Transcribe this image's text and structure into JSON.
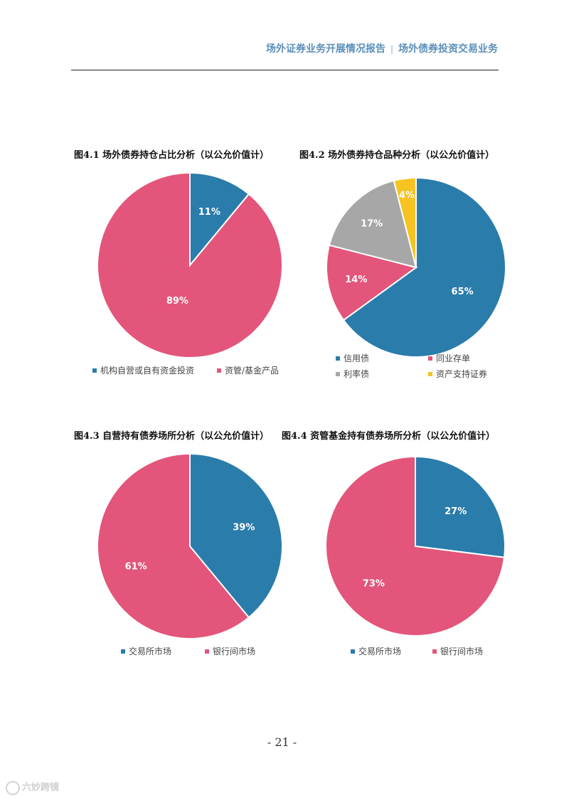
{
  "header": {
    "report_title": "场外证券业务开展情况报告",
    "section_title": "场外债券投资交易业务"
  },
  "page_number": "- 21 -",
  "watermark": "六妙跨镜",
  "chart_data": [
    {
      "type": "pie",
      "title": "图4.1 场外债券持仓占比分析（以公允价值计）",
      "labels": [
        "机构自营或自有资金投资",
        "资管/基金产品"
      ],
      "values": [
        11,
        89
      ],
      "value_labels": [
        "11%",
        "89%"
      ],
      "colors": [
        "#2a7cab",
        "#e3557a"
      ],
      "legend_position": "bottom"
    },
    {
      "type": "pie",
      "title": "图4.2 场外债券持仓品种分析（以公允价值计）",
      "labels": [
        "信用债",
        "同业存单",
        "利率债",
        "资产支持证券"
      ],
      "values": [
        65,
        14,
        17,
        4
      ],
      "value_labels": [
        "65%",
        "14%",
        "17%",
        "4%"
      ],
      "colors": [
        "#2a7cab",
        "#e3557a",
        "#a7a7a7",
        "#f6c322"
      ],
      "legend_position": "bottom"
    },
    {
      "type": "pie",
      "title": "图4.3 自营持有债券场所分析（以公允价值计）",
      "labels": [
        "交易所市场",
        "银行间市场"
      ],
      "values": [
        39,
        61
      ],
      "value_labels": [
        "39%",
        "61%"
      ],
      "colors": [
        "#2a7cab",
        "#e3557a"
      ],
      "legend_position": "bottom"
    },
    {
      "type": "pie",
      "title": "图4.4 资管基金持有债券场所分析（以公允价值计）",
      "labels": [
        "交易所市场",
        "银行间市场"
      ],
      "values": [
        27,
        73
      ],
      "value_labels": [
        "27%",
        "73%"
      ],
      "colors": [
        "#2a7cab",
        "#e3557a"
      ],
      "legend_position": "bottom"
    }
  ]
}
